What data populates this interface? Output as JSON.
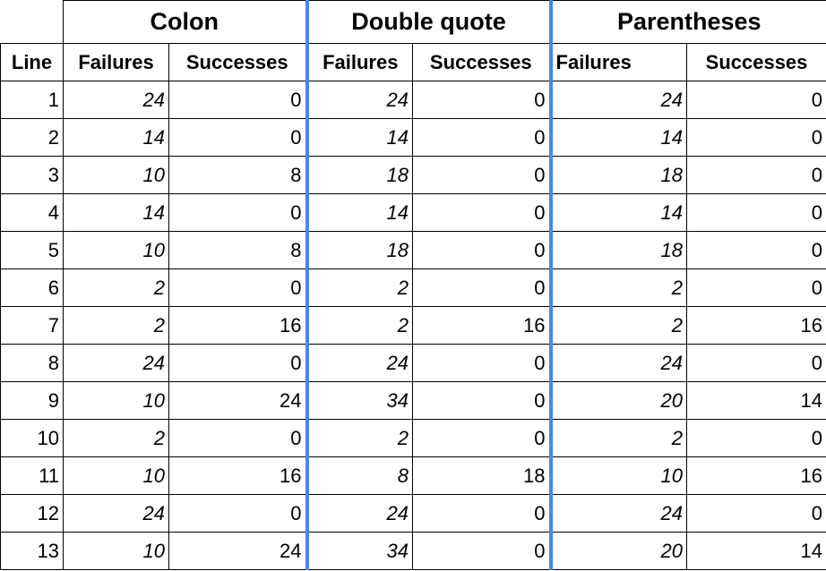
{
  "header": {
    "line_label": "Line",
    "groups": [
      {
        "name": "Colon",
        "failures_label": "Failures",
        "successes_label": "Successes"
      },
      {
        "name": "Double quote",
        "failures_label": "Failures",
        "successes_label": "Successes"
      },
      {
        "name": "Parentheses",
        "failures_label": "Failures",
        "successes_label": "Successes"
      }
    ]
  },
  "rows": [
    {
      "line": "1",
      "v": [
        "24",
        "0",
        "24",
        "0",
        "24",
        "0"
      ]
    },
    {
      "line": "2",
      "v": [
        "14",
        "0",
        "14",
        "0",
        "14",
        "0"
      ]
    },
    {
      "line": "3",
      "v": [
        "10",
        "8",
        "18",
        "0",
        "18",
        "0"
      ]
    },
    {
      "line": "4",
      "v": [
        "14",
        "0",
        "14",
        "0",
        "14",
        "0"
      ]
    },
    {
      "line": "5",
      "v": [
        "10",
        "8",
        "18",
        "0",
        "18",
        "0"
      ]
    },
    {
      "line": "6",
      "v": [
        "2",
        "0",
        "2",
        "0",
        "2",
        "0"
      ]
    },
    {
      "line": "7",
      "v": [
        "2",
        "16",
        "2",
        "16",
        "2",
        "16"
      ]
    },
    {
      "line": "8",
      "v": [
        "24",
        "0",
        "24",
        "0",
        "24",
        "0"
      ]
    },
    {
      "line": "9",
      "v": [
        "10",
        "24",
        "34",
        "0",
        "20",
        "14"
      ]
    },
    {
      "line": "10",
      "v": [
        "2",
        "0",
        "2",
        "0",
        "2",
        "0"
      ]
    },
    {
      "line": "11",
      "v": [
        "10",
        "16",
        "8",
        "18",
        "10",
        "16"
      ]
    },
    {
      "line": "12",
      "v": [
        "24",
        "0",
        "24",
        "0",
        "24",
        "0"
      ]
    },
    {
      "line": "13",
      "v": [
        "10",
        "24",
        "34",
        "0",
        "20",
        "14"
      ]
    }
  ],
  "colors": {
    "divider": "#4a86e8"
  }
}
